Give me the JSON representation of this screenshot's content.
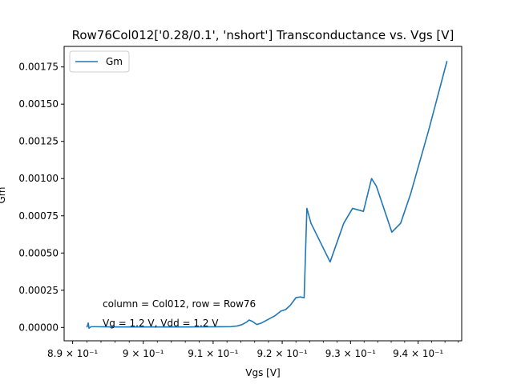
{
  "chart_data": {
    "type": "line",
    "title": "Row76Col012['0.28/0.1', 'nshort'] Transconductance vs. Vgs [V]",
    "xlabel": "Vgs [V]",
    "ylabel": "Gm",
    "xscale": "log",
    "xlim": [
      0.8888,
      0.9465
    ],
    "ylim": [
      -8.97e-05,
      0.001888
    ],
    "x_ticks": [
      {
        "value": 0.89,
        "label": "8.9 × 10⁻¹"
      },
      {
        "value": 0.9,
        "label": "9 × 10⁻¹"
      },
      {
        "value": 0.91,
        "label": "9.1 × 10⁻¹"
      },
      {
        "value": 0.92,
        "label": "9.2 × 10⁻¹"
      },
      {
        "value": 0.93,
        "label": "9.3 × 10⁻¹"
      },
      {
        "value": 0.94,
        "label": "9.4 × 10⁻¹"
      }
    ],
    "y_ticks": [
      {
        "value": 0.0,
        "label": "0.00000"
      },
      {
        "value": 0.00025,
        "label": "0.00025"
      },
      {
        "value": 0.0005,
        "label": "0.00050"
      },
      {
        "value": 0.00075,
        "label": "0.00075"
      },
      {
        "value": 0.001,
        "label": "0.00100"
      },
      {
        "value": 0.00125,
        "label": "0.00125"
      },
      {
        "value": 0.0015,
        "label": "0.00150"
      },
      {
        "value": 0.00175,
        "label": "0.00175"
      }
    ],
    "legend": {
      "position": "top-left"
    },
    "grid": false,
    "annotations": [
      "column = Col012, row = Row76",
      "Vg = 1.2 V, Vdd = 1.2 V"
    ],
    "series": [
      {
        "name": "Gm",
        "color": "#1f77b4",
        "x": [
          0.892,
          0.8922,
          0.8923,
          0.8926,
          0.8932,
          0.8948,
          0.8965,
          0.899,
          0.902,
          0.906,
          0.909,
          0.911,
          0.9125,
          0.9135,
          0.9142,
          0.9148,
          0.9152,
          0.9157,
          0.9163,
          0.917,
          0.918,
          0.919,
          0.9198,
          0.9205,
          0.9212,
          0.922,
          0.9226,
          0.9232,
          0.9236,
          0.9242,
          0.927,
          0.929,
          0.9303,
          0.9319,
          0.9331,
          0.9338,
          0.9361,
          0.9374,
          0.9389,
          0.9416,
          0.9443
        ],
        "y": [
          0.0,
          3e-05,
          -5e-06,
          5e-06,
          5e-06,
          4e-06,
          3.5e-06,
          3.5e-06,
          3.5e-06,
          3.5e-06,
          4e-06,
          4.5e-06,
          5e-06,
          1e-05,
          2e-05,
          3.5e-05,
          5e-05,
          4e-05,
          2e-05,
          3e-05,
          5.5e-05,
          8e-05,
          0.00011,
          0.00012,
          0.00015,
          0.0002,
          0.000205,
          0.0002,
          0.0008,
          0.0007,
          0.00044,
          0.0007,
          0.0008,
          0.00078,
          0.001,
          0.00095,
          0.00064,
          0.0007,
          0.0009,
          0.00133,
          0.00179
        ]
      }
    ]
  }
}
